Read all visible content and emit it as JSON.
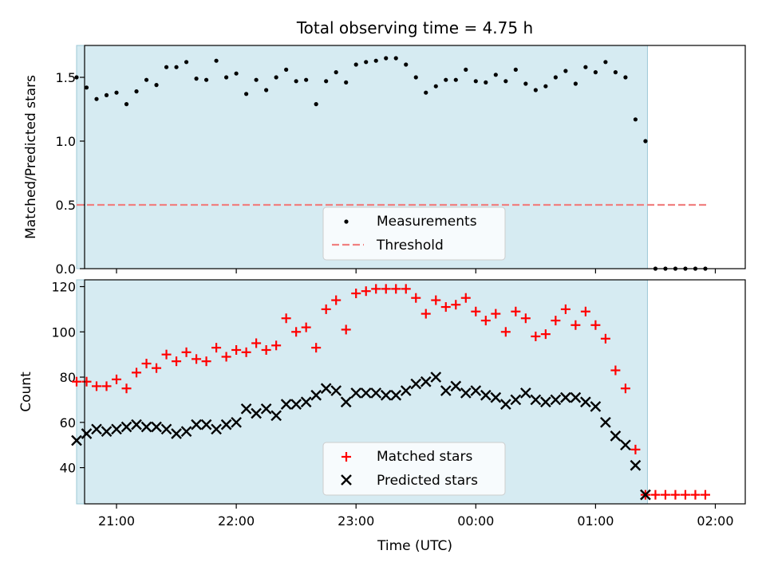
{
  "chart_data": [
    {
      "type": "scatter",
      "title": "Total observing time = 4.75 h",
      "xlabel": "",
      "ylabel": "Matched/Predicted stars",
      "xlim": [
        "20:44",
        "02:15"
      ],
      "ylim": [
        0,
        1.75
      ],
      "yticks": [
        0.0,
        0.5,
        1.0,
        1.5
      ],
      "ytick_labels": [
        "0.0",
        "0.5",
        "1.0",
        "1.5"
      ],
      "shaded_span": [
        "20:40",
        "01:26"
      ],
      "legend": {
        "placement": "bottom-center",
        "entries": [
          "Measurements",
          "Threshold"
        ]
      },
      "threshold": {
        "name": "Threshold",
        "value": 0.5,
        "x_start": "20:40",
        "x_end": "01:56",
        "color": "#f08080"
      },
      "series": [
        {
          "name": "Measurements",
          "color": "#000000",
          "x": [
            "20:40",
            "20:45",
            "20:50",
            "20:55",
            "21:00",
            "21:05",
            "21:10",
            "21:15",
            "21:20",
            "21:25",
            "21:30",
            "21:35",
            "21:40",
            "21:45",
            "21:50",
            "21:55",
            "22:00",
            "22:05",
            "22:10",
            "22:15",
            "22:20",
            "22:25",
            "22:30",
            "22:35",
            "22:40",
            "22:45",
            "22:50",
            "22:55",
            "23:00",
            "23:05",
            "23:10",
            "23:15",
            "23:20",
            "23:25",
            "23:30",
            "23:35",
            "23:40",
            "23:45",
            "23:50",
            "23:55",
            "00:00",
            "00:05",
            "00:10",
            "00:15",
            "00:20",
            "00:25",
            "00:30",
            "00:35",
            "00:40",
            "00:45",
            "00:50",
            "00:55",
            "01:00",
            "01:05",
            "01:10",
            "01:15",
            "01:20",
            "01:25",
            "01:30",
            "01:35",
            "01:40",
            "01:45",
            "01:50",
            "01:55"
          ],
          "y": [
            1.5,
            1.42,
            1.33,
            1.36,
            1.38,
            1.29,
            1.39,
            1.48,
            1.44,
            1.58,
            1.58,
            1.62,
            1.49,
            1.48,
            1.63,
            1.5,
            1.53,
            1.37,
            1.48,
            1.4,
            1.5,
            1.56,
            1.47,
            1.48,
            1.29,
            1.47,
            1.54,
            1.46,
            1.6,
            1.62,
            1.63,
            1.65,
            1.65,
            1.6,
            1.5,
            1.38,
            1.43,
            1.48,
            1.48,
            1.56,
            1.47,
            1.46,
            1.52,
            1.47,
            1.56,
            1.45,
            1.4,
            1.43,
            1.5,
            1.55,
            1.45,
            1.58,
            1.54,
            1.62,
            1.54,
            1.5,
            1.17,
            1.0,
            0,
            0,
            0,
            0,
            0,
            0
          ]
        }
      ]
    },
    {
      "type": "scatter",
      "title": "",
      "xlabel": "Time (UTC)",
      "ylabel": "Count",
      "xlim": [
        "20:44",
        "02:15"
      ],
      "ylim": [
        24,
        123
      ],
      "xticks": [
        "21:00",
        "22:00",
        "23:00",
        "00:00",
        "01:00",
        "02:00"
      ],
      "yticks": [
        40,
        60,
        80,
        100,
        120
      ],
      "shaded_span": [
        "20:40",
        "01:26"
      ],
      "legend": {
        "placement": "bottom-center",
        "entries": [
          "Matched stars",
          "Predicted stars"
        ]
      },
      "series": [
        {
          "name": "Matched stars",
          "marker": "plus",
          "color": "#ff0000",
          "x": [
            "20:40",
            "20:45",
            "20:50",
            "20:55",
            "21:00",
            "21:05",
            "21:10",
            "21:15",
            "21:20",
            "21:25",
            "21:30",
            "21:35",
            "21:40",
            "21:45",
            "21:50",
            "21:55",
            "22:00",
            "22:05",
            "22:10",
            "22:15",
            "22:20",
            "22:25",
            "22:30",
            "22:35",
            "22:40",
            "22:45",
            "22:50",
            "22:55",
            "23:00",
            "23:05",
            "23:10",
            "23:15",
            "23:20",
            "23:25",
            "23:30",
            "23:35",
            "23:40",
            "23:45",
            "23:50",
            "23:55",
            "00:00",
            "00:05",
            "00:10",
            "00:15",
            "00:20",
            "00:25",
            "00:30",
            "00:35",
            "00:40",
            "00:45",
            "00:50",
            "00:55",
            "01:00",
            "01:05",
            "01:10",
            "01:15",
            "01:20",
            "01:25",
            "01:30",
            "01:35",
            "01:40",
            "01:45",
            "01:50",
            "01:55"
          ],
          "y": [
            78,
            78,
            76,
            76,
            79,
            75,
            82,
            86,
            84,
            90,
            87,
            91,
            88,
            87,
            93,
            89,
            92,
            91,
            95,
            92,
            94,
            106,
            100,
            102,
            93,
            110,
            114,
            101,
            117,
            118,
            119,
            119,
            119,
            119,
            115,
            108,
            114,
            111,
            112,
            115,
            109,
            105,
            108,
            100,
            109,
            106,
            98,
            99,
            105,
            110,
            103,
            109,
            103,
            97,
            83,
            75,
            48,
            28,
            28,
            28,
            28,
            28,
            28,
            28
          ]
        },
        {
          "name": "Predicted stars",
          "marker": "x",
          "color": "#000000",
          "x": [
            "20:40",
            "20:45",
            "20:50",
            "20:55",
            "21:00",
            "21:05",
            "21:10",
            "21:15",
            "21:20",
            "21:25",
            "21:30",
            "21:35",
            "21:40",
            "21:45",
            "21:50",
            "21:55",
            "22:00",
            "22:05",
            "22:10",
            "22:15",
            "22:20",
            "22:25",
            "22:30",
            "22:35",
            "22:40",
            "22:45",
            "22:50",
            "22:55",
            "23:00",
            "23:05",
            "23:10",
            "23:15",
            "23:20",
            "23:25",
            "23:30",
            "23:35",
            "23:40",
            "23:45",
            "23:50",
            "23:55",
            "00:00",
            "00:05",
            "00:10",
            "00:15",
            "00:20",
            "00:25",
            "00:30",
            "00:35",
            "00:40",
            "00:45",
            "00:50",
            "00:55",
            "01:00",
            "01:05",
            "01:10",
            "01:15",
            "01:20",
            "01:25"
          ],
          "y": [
            52,
            55,
            57,
            56,
            57,
            58,
            59,
            58,
            58,
            57,
            55,
            56,
            59,
            59,
            57,
            59,
            60,
            66,
            64,
            66,
            63,
            68,
            68,
            69,
            72,
            75,
            74,
            69,
            73,
            73,
            73,
            72,
            72,
            74,
            77,
            78,
            80,
            74,
            76,
            73,
            74,
            72,
            71,
            68,
            70,
            73,
            70,
            69,
            70,
            71,
            71,
            69,
            67,
            60,
            54,
            50,
            41,
            28
          ]
        }
      ]
    }
  ]
}
